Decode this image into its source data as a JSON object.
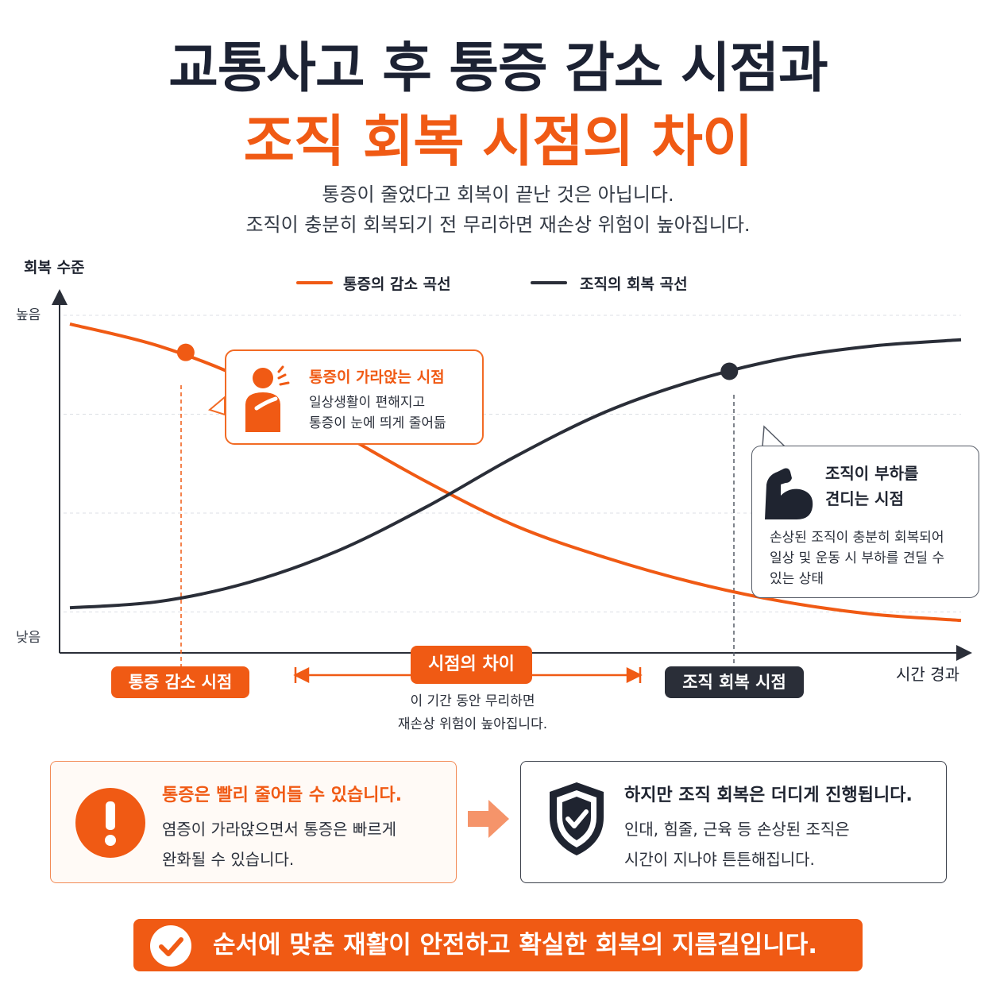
{
  "header": {
    "title_line1": "교통사고 후 통증 감소 시점과",
    "title_line2": "조직 회복 시점의 차이",
    "subtitle_line1": "통증이 줄었다고 회복이 끝난 것은 아닙니다.",
    "subtitle_line2": "조직이 충분히 회복되기 전 무리하면 재손상 위험이 높아집니다."
  },
  "colors": {
    "accent": "#f05a14",
    "dark": "#2a2e38",
    "text": "#1f2430"
  },
  "chart_data": {
    "type": "line",
    "ylabel": "회복 수준",
    "xlabel": "시간 경과",
    "y_tick_high": "높음",
    "y_tick_low": "낮음",
    "x": [
      0,
      10,
      20,
      30,
      40,
      50,
      60,
      70,
      80,
      90,
      100
    ],
    "ylim": [
      0,
      100
    ],
    "grid": true,
    "legend_position": "top",
    "series": [
      {
        "name": "통증의 감소 곡선",
        "color": "#f05a14",
        "values": [
          98,
          91,
          80,
          64,
          48,
          34,
          24,
          16,
          10,
          6,
          4
        ]
      },
      {
        "name": "조직의 회복 곡선",
        "color": "#2a2e38",
        "values": [
          8,
          10,
          16,
          26,
          40,
          56,
          70,
          80,
          87,
          91,
          93
        ]
      }
    ],
    "markers": [
      {
        "series": 0,
        "x": 13,
        "y": 89
      },
      {
        "series": 1,
        "x": 74,
        "y": 83
      }
    ]
  },
  "pain_callout": {
    "icon": "person-pain-icon",
    "title": "통증이 가라앉는 시점",
    "line1": "일상생활이 편해지고",
    "line2": "통증이 눈에 띄게 줄어듦"
  },
  "tissue_callout": {
    "icon": "flexed-arm-icon",
    "title_line1": "조직이 부하를",
    "title_line2": "견디는 시점",
    "line1": "손상된 조직이 충분히 회복되어",
    "line2": "일상 및 운동 시 부하를 견딜 수",
    "line3": "있는 상태"
  },
  "timeline": {
    "pain_point": "통증 감소 시점",
    "gap": "시점의 차이",
    "tissue_point": "조직 회복 시점",
    "gap_note_line1": "이 기간 동안 무리하면",
    "gap_note_line2": "재손상 위험이 높아집니다."
  },
  "cards": {
    "left": {
      "icon": "exclamation-icon",
      "title": "통증은 빨리 줄어들 수 있습니다.",
      "line1": "염증이 가라앉으면서 통증은 빠르게",
      "line2": "완화될 수 있습니다."
    },
    "right": {
      "icon": "shield-check-icon",
      "title": "하지만 조직 회복은 더디게 진행됩니다.",
      "line1": "인대, 힘줄, 근육 등 손상된 조직은",
      "line2": "시간이 지나야 튼튼해집니다."
    }
  },
  "banner": {
    "icon": "check-circle-icon",
    "text": "순서에 맞춘 재활이 안전하고 확실한 회복의 지름길입니다."
  }
}
